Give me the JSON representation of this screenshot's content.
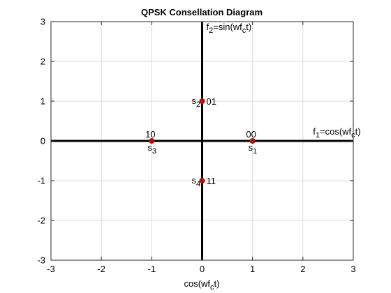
{
  "chart_data": {
    "type": "scatter",
    "title": "QPSK Consellation Diagram",
    "xlabel": {
      "base": "cos(wf",
      "sub": "c",
      "tail": "t)"
    },
    "ylabel": "",
    "xlim": [
      -3,
      3
    ],
    "ylim": [
      -3,
      3
    ],
    "x_ticks": [
      "-3",
      "-2",
      "-1",
      "0",
      "1",
      "2",
      "3"
    ],
    "y_ticks": [
      "-3",
      "-2",
      "-1",
      "0",
      "1",
      "2",
      "3"
    ],
    "grid": true,
    "marker_color": "#b01010",
    "points": [
      {
        "x": 1,
        "y": 0,
        "symbol": "s",
        "index": "1",
        "bits": "00"
      },
      {
        "x": 0,
        "y": 1,
        "symbol": "s",
        "index": "2",
        "bits": "01"
      },
      {
        "x": -1,
        "y": 0,
        "symbol": "s",
        "index": "3",
        "bits": "10"
      },
      {
        "x": 0,
        "y": -1,
        "symbol": "s",
        "index": "4",
        "bits": "11"
      }
    ],
    "axis_labels": {
      "f1": {
        "pre": "f",
        "pre_sub": "1",
        "mid": "=cos(wf",
        "mid_sub": "c",
        "tail": "t)"
      },
      "f2": {
        "pre": "f",
        "pre_sub": "2",
        "mid": "=sin(wf",
        "mid_sub": "c",
        "tail": "t)"
      }
    }
  }
}
